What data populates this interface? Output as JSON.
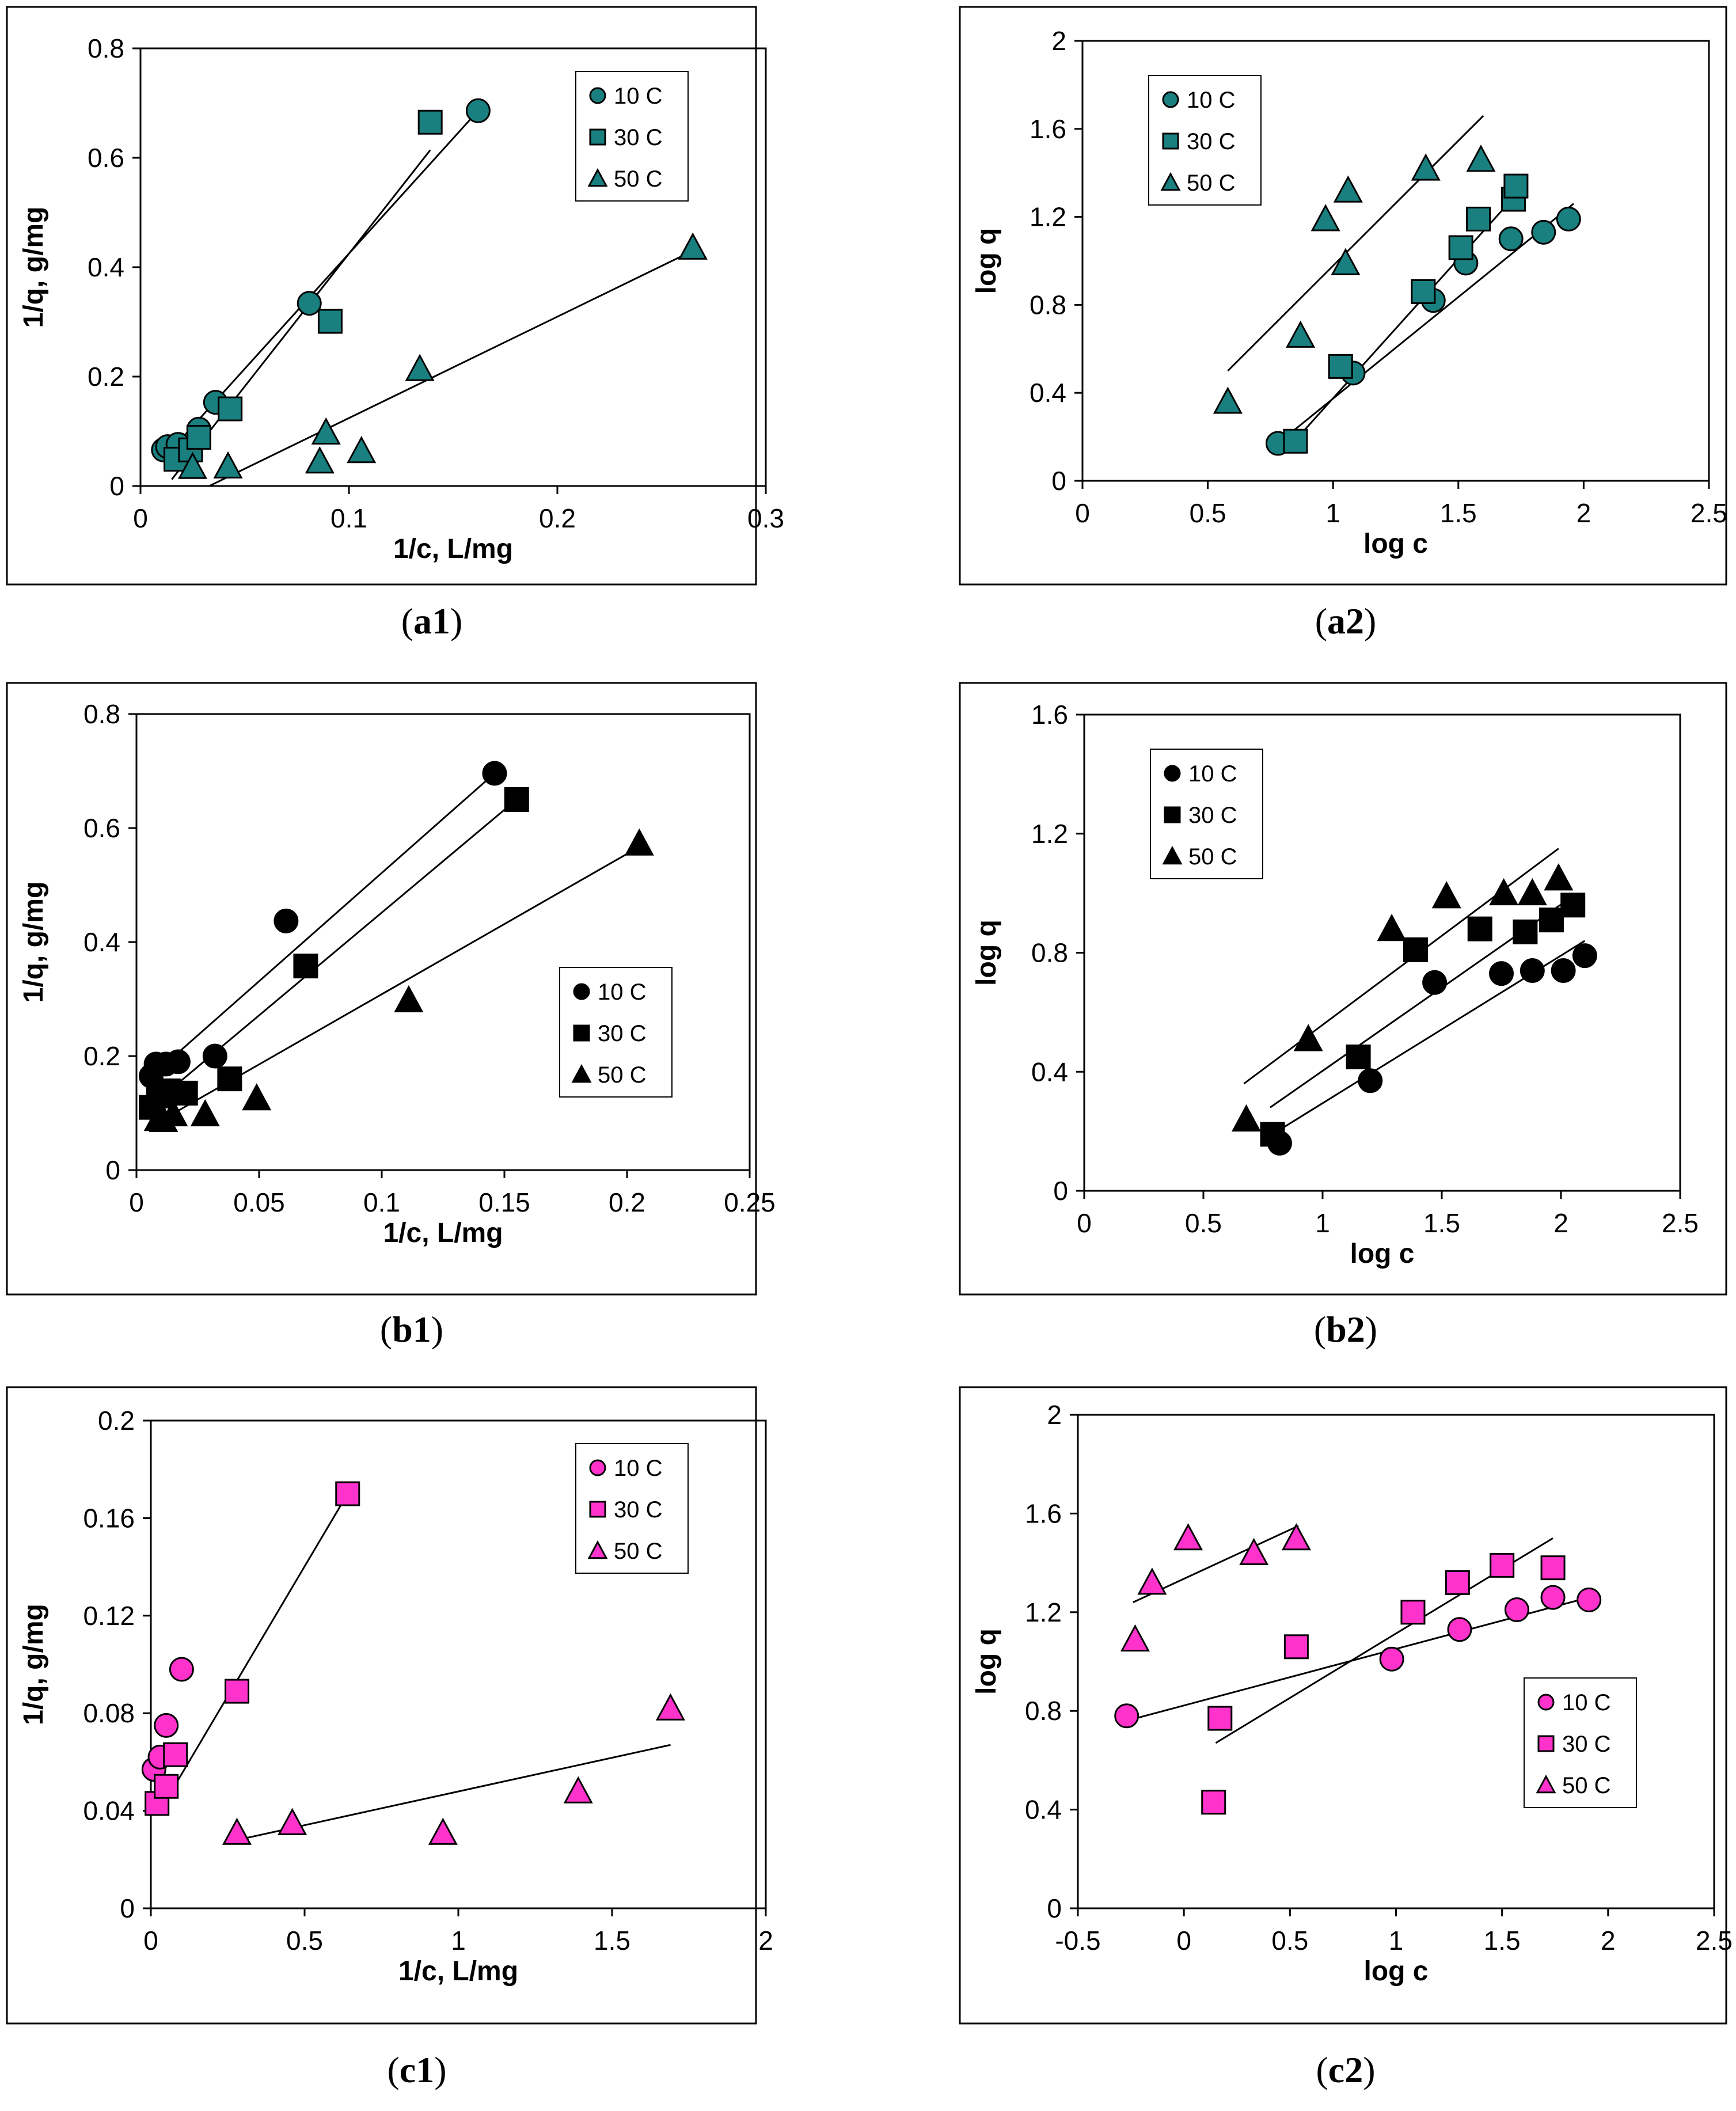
{
  "chart_data": [
    {
      "id": "a1",
      "caption_letter": "a",
      "caption_num": "1",
      "type": "scatter",
      "xlabel": "1/c, L/mg",
      "ylabel": "1/q, g/mg",
      "xlim": [
        0,
        0.3
      ],
      "ylim": [
        0,
        0.8
      ],
      "xticks": [
        "0",
        "0.1",
        "0.2",
        "0.3"
      ],
      "yticks": [
        "0",
        "0.2",
        "0.4",
        "0.6",
        "0.8"
      ],
      "legend_position": "top-right",
      "color": "#1a7f7f",
      "series": [
        {
          "name": "10 C",
          "marker": "circle",
          "x": [
            0.011,
            0.013,
            0.018,
            0.028,
            0.036,
            0.081,
            0.162
          ],
          "y": [
            0.066,
            0.072,
            0.076,
            0.104,
            0.153,
            0.334,
            0.686
          ],
          "fit": [
            [
              0.011,
              0.05
            ],
            [
              0.162,
              0.686
            ]
          ]
        },
        {
          "name": "30 C",
          "marker": "square",
          "x": [
            0.017,
            0.024,
            0.028,
            0.043,
            0.091,
            0.139
          ],
          "y": [
            0.049,
            0.066,
            0.089,
            0.141,
            0.301,
            0.665
          ],
          "fit": [
            [
              0.015,
              0.012
            ],
            [
              0.139,
              0.614
            ]
          ]
        },
        {
          "name": "50 C",
          "marker": "triangle",
          "x": [
            0.025,
            0.042,
            0.086,
            0.089,
            0.106,
            0.134,
            0.265
          ],
          "y": [
            0.035,
            0.036,
            0.045,
            0.098,
            0.064,
            0.214,
            0.436
          ],
          "fit": [
            [
              0.033,
              0.0
            ],
            [
              0.265,
              0.43
            ]
          ]
        }
      ]
    },
    {
      "id": "a2",
      "caption_letter": "a",
      "caption_num": "2",
      "type": "scatter",
      "xlabel": "log c",
      "ylabel": "log q",
      "xlim": [
        0,
        2.5
      ],
      "ylim": [
        0,
        2
      ],
      "xticks": [
        "0",
        "0.5",
        "1",
        "1.5",
        "2",
        "2.5"
      ],
      "yticks": [
        "0",
        "0.4",
        "0.8",
        "1.2",
        "1.6",
        "2"
      ],
      "legend_position": "top-left",
      "color": "#1a7f7f",
      "series": [
        {
          "name": "10 C",
          "marker": "circle",
          "x": [
            0.78,
            1.08,
            1.4,
            1.53,
            1.71,
            1.84,
            1.94
          ],
          "y": [
            0.17,
            0.49,
            0.82,
            0.99,
            1.1,
            1.13,
            1.19
          ],
          "fit": [
            [
              0.79,
              0.18
            ],
            [
              1.96,
              1.26
            ]
          ]
        },
        {
          "name": "30 C",
          "marker": "square",
          "x": [
            0.85,
            1.03,
            1.36,
            1.51,
            1.58,
            1.72,
            1.73
          ],
          "y": [
            0.18,
            0.52,
            0.86,
            1.06,
            1.19,
            1.28,
            1.34
          ],
          "fit": [
            [
              0.83,
              0.16
            ],
            [
              1.73,
              1.3
            ]
          ]
        },
        {
          "name": "50 C",
          "marker": "triangle",
          "x": [
            0.58,
            0.87,
            0.97,
            1.05,
            1.06,
            1.37,
            1.59
          ],
          "y": [
            0.36,
            0.66,
            1.19,
            0.99,
            1.32,
            1.42,
            1.46
          ],
          "fit": [
            [
              0.58,
              0.5
            ],
            [
              1.6,
              1.66
            ]
          ]
        }
      ]
    },
    {
      "id": "b1",
      "caption_letter": "b",
      "caption_num": "1",
      "type": "scatter",
      "xlabel": "1/c, L/mg",
      "ylabel": "1/q, g/mg",
      "xlim": [
        0,
        0.25
      ],
      "ylim": [
        0,
        0.8
      ],
      "xticks": [
        "0",
        "0.05",
        "0.1",
        "0.15",
        "0.2",
        "0.25"
      ],
      "yticks": [
        "0",
        "0.2",
        "0.4",
        "0.6",
        "0.8"
      ],
      "legend_position": "middle-right",
      "color": "#000000",
      "series": [
        {
          "name": "10 C",
          "marker": "circle",
          "x": [
            0.006,
            0.008,
            0.012,
            0.017,
            0.032,
            0.061,
            0.146
          ],
          "y": [
            0.165,
            0.186,
            0.186,
            0.19,
            0.2,
            0.437,
            0.696
          ],
          "fit": [
            [
              0.007,
              0.168
            ],
            [
              0.146,
              0.696
            ]
          ]
        },
        {
          "name": "30 C",
          "marker": "square",
          "x": [
            0.006,
            0.009,
            0.013,
            0.02,
            0.038,
            0.069,
            0.155
          ],
          "y": [
            0.11,
            0.13,
            0.139,
            0.135,
            0.16,
            0.358,
            0.65
          ],
          "fit": [
            [
              0.008,
              0.12
            ],
            [
              0.155,
              0.65
            ]
          ]
        },
        {
          "name": "50 C",
          "marker": "triangle",
          "x": [
            0.009,
            0.011,
            0.015,
            0.028,
            0.049,
            0.111,
            0.205
          ],
          "y": [
            0.09,
            0.088,
            0.098,
            0.098,
            0.126,
            0.298,
            0.573
          ],
          "fit": [
            [
              0.008,
              0.082
            ],
            [
              0.205,
              0.567
            ]
          ]
        }
      ]
    },
    {
      "id": "b2",
      "caption_letter": "b",
      "caption_num": "2",
      "type": "scatter",
      "xlabel": "log c",
      "ylabel": "log q",
      "xlim": [
        0,
        2.5
      ],
      "ylim": [
        0,
        1.6
      ],
      "xticks": [
        "0",
        "0.5",
        "1",
        "1.5",
        "2",
        "2.5"
      ],
      "yticks": [
        "0",
        "0.4",
        "0.8",
        "1.2",
        "1.6"
      ],
      "legend_position": "top-left",
      "color": "#000000",
      "series": [
        {
          "name": "10 C",
          "marker": "circle",
          "x": [
            0.82,
            1.2,
            1.47,
            1.75,
            1.88,
            2.01,
            2.1
          ],
          "y": [
            0.16,
            0.37,
            0.7,
            0.73,
            0.74,
            0.74,
            0.79
          ],
          "fit": [
            [
              0.83,
              0.21
            ],
            [
              2.1,
              0.84
            ]
          ]
        },
        {
          "name": "30 C",
          "marker": "square",
          "x": [
            0.79,
            1.15,
            1.39,
            1.66,
            1.85,
            1.96,
            2.05
          ],
          "y": [
            0.19,
            0.45,
            0.81,
            0.88,
            0.87,
            0.91,
            0.96
          ],
          "fit": [
            [
              0.78,
              0.28
            ],
            [
              2.05,
              0.99
            ]
          ]
        },
        {
          "name": "50 C",
          "marker": "triangle",
          "x": [
            0.68,
            0.94,
            1.29,
            1.52,
            1.76,
            1.88,
            1.99
          ],
          "y": [
            0.24,
            0.51,
            0.88,
            0.99,
            1.0,
            1.0,
            1.05
          ],
          "fit": [
            [
              0.67,
              0.36
            ],
            [
              1.99,
              1.15
            ]
          ]
        }
      ]
    },
    {
      "id": "c1",
      "caption_letter": "c",
      "caption_num": "1",
      "type": "scatter",
      "xlabel": "1/c, L/mg",
      "ylabel": "1/q, g/mg",
      "xlim": [
        0,
        2
      ],
      "ylim": [
        0,
        0.2
      ],
      "xticks": [
        "0",
        "0.5",
        "1",
        "1.5",
        "2"
      ],
      "yticks": [
        "0",
        "0.04",
        "0.08",
        "0.12",
        "0.16",
        "0.2"
      ],
      "legend_position": "top-right",
      "color": "#ff33cc",
      "series": [
        {
          "name": "10 C",
          "marker": "circle",
          "x": [
            0.01,
            0.03,
            0.05,
            0.1
          ],
          "y": [
            0.057,
            0.062,
            0.075,
            0.098
          ],
          "fit": null
        },
        {
          "name": "30 C",
          "marker": "square",
          "x": [
            0.02,
            0.05,
            0.08,
            0.28,
            0.64
          ],
          "y": [
            0.043,
            0.05,
            0.063,
            0.089,
            0.17
          ],
          "fit": [
            [
              0.02,
              0.038
            ],
            [
              0.64,
              0.17
            ]
          ]
        },
        {
          "name": "50 C",
          "marker": "triangle",
          "x": [
            0.28,
            0.46,
            0.95,
            1.39,
            1.69
          ],
          "y": [
            0.031,
            0.035,
            0.031,
            0.048,
            0.082
          ],
          "fit": [
            [
              0.28,
              0.028
            ],
            [
              1.69,
              0.067
            ]
          ]
        }
      ]
    },
    {
      "id": "c2",
      "caption_letter": "c",
      "caption_num": "2",
      "type": "scatter",
      "xlabel": "log c",
      "ylabel": "log q",
      "xlim": [
        -0.5,
        2.5
      ],
      "ylim": [
        0,
        2
      ],
      "xticks": [
        "-0.5",
        "0",
        "0.5",
        "1",
        "1.5",
        "2",
        "2.5"
      ],
      "yticks": [
        "0",
        "0.4",
        "0.8",
        "1.2",
        "1.6",
        "2"
      ],
      "legend_position": "bottom-right",
      "color": "#ff33cc",
      "series": [
        {
          "name": "10 C",
          "marker": "circle",
          "x": [
            -0.27,
            0.98,
            1.3,
            1.57,
            1.74,
            1.91
          ],
          "y": [
            0.78,
            1.01,
            1.13,
            1.21,
            1.26,
            1.25
          ],
          "fit": [
            [
              -0.27,
              0.76
            ],
            [
              1.91,
              1.26
            ]
          ]
        },
        {
          "name": "30 C",
          "marker": "square",
          "x": [
            0.14,
            0.17,
            0.53,
            1.08,
            1.29,
            1.5,
            1.74
          ],
          "y": [
            0.43,
            0.77,
            1.06,
            1.2,
            1.32,
            1.39,
            1.38
          ],
          "fit": [
            [
              0.15,
              0.67
            ],
            [
              1.74,
              1.5
            ]
          ]
        },
        {
          "name": "50 C",
          "marker": "triangle",
          "x": [
            -0.23,
            -0.15,
            0.02,
            0.33,
            0.53
          ],
          "y": [
            1.09,
            1.32,
            1.5,
            1.44,
            1.5
          ],
          "fit": [
            [
              -0.24,
              1.24
            ],
            [
              0.54,
              1.55
            ]
          ]
        }
      ]
    }
  ]
}
